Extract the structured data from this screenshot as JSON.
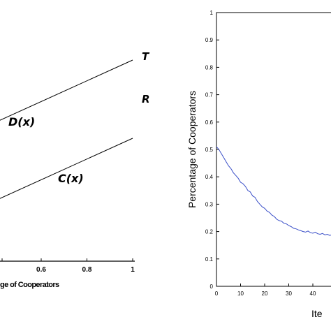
{
  "chart_data": [
    {
      "type": "line",
      "title": "",
      "xlabel": "ge of Cooperators",
      "ylabel": "",
      "xlim": [
        0.3,
        1.0
      ],
      "x_ticks": [
        "0.6",
        "0.8",
        "1"
      ],
      "series": [
        {
          "name": "D(x)",
          "x": [
            0.3,
            1.0
          ],
          "y": [
            0.66,
            0.92
          ]
        },
        {
          "name": "C(x)",
          "x": [
            0.3,
            1.0
          ],
          "y": [
            0.38,
            0.64
          ]
        }
      ],
      "end_labels": {
        "upper": "T",
        "lower": "R"
      },
      "grid": false,
      "legend": "none"
    },
    {
      "type": "line",
      "title": "",
      "xlabel": "Ite",
      "ylabel": "Percentage of Cooperators",
      "xlim": [
        0,
        48
      ],
      "ylim": [
        0,
        1
      ],
      "x_ticks": [
        "0",
        "10",
        "20",
        "30",
        "40"
      ],
      "y_ticks": [
        "0",
        "0.1",
        "0.2",
        "0.3",
        "0.4",
        "0.5",
        "0.6",
        "0.7",
        "0.8",
        "0.9",
        "1"
      ],
      "grid": false,
      "legend": "none",
      "series": [
        {
          "color": "#3a4fc8",
          "x": [
            0,
            1,
            2,
            3,
            4,
            5,
            6,
            7,
            8,
            9,
            10,
            11,
            12,
            13,
            14,
            15,
            16,
            17,
            18,
            19,
            20,
            21,
            22,
            23,
            24,
            25,
            26,
            27,
            28,
            29,
            30,
            31,
            32,
            33,
            34,
            35,
            36,
            37,
            38,
            39,
            40,
            41,
            42,
            43,
            44,
            45,
            46,
            47,
            48
          ],
          "y": [
            0.51,
            0.5,
            0.485,
            0.47,
            0.455,
            0.44,
            0.43,
            0.415,
            0.405,
            0.395,
            0.38,
            0.375,
            0.365,
            0.35,
            0.345,
            0.33,
            0.325,
            0.31,
            0.3,
            0.29,
            0.285,
            0.275,
            0.27,
            0.26,
            0.255,
            0.245,
            0.24,
            0.238,
            0.23,
            0.228,
            0.222,
            0.218,
            0.212,
            0.21,
            0.206,
            0.203,
            0.2,
            0.198,
            0.202,
            0.196,
            0.194,
            0.198,
            0.192,
            0.19,
            0.193,
            0.188,
            0.19,
            0.186,
            0.188
          ]
        }
      ]
    }
  ]
}
